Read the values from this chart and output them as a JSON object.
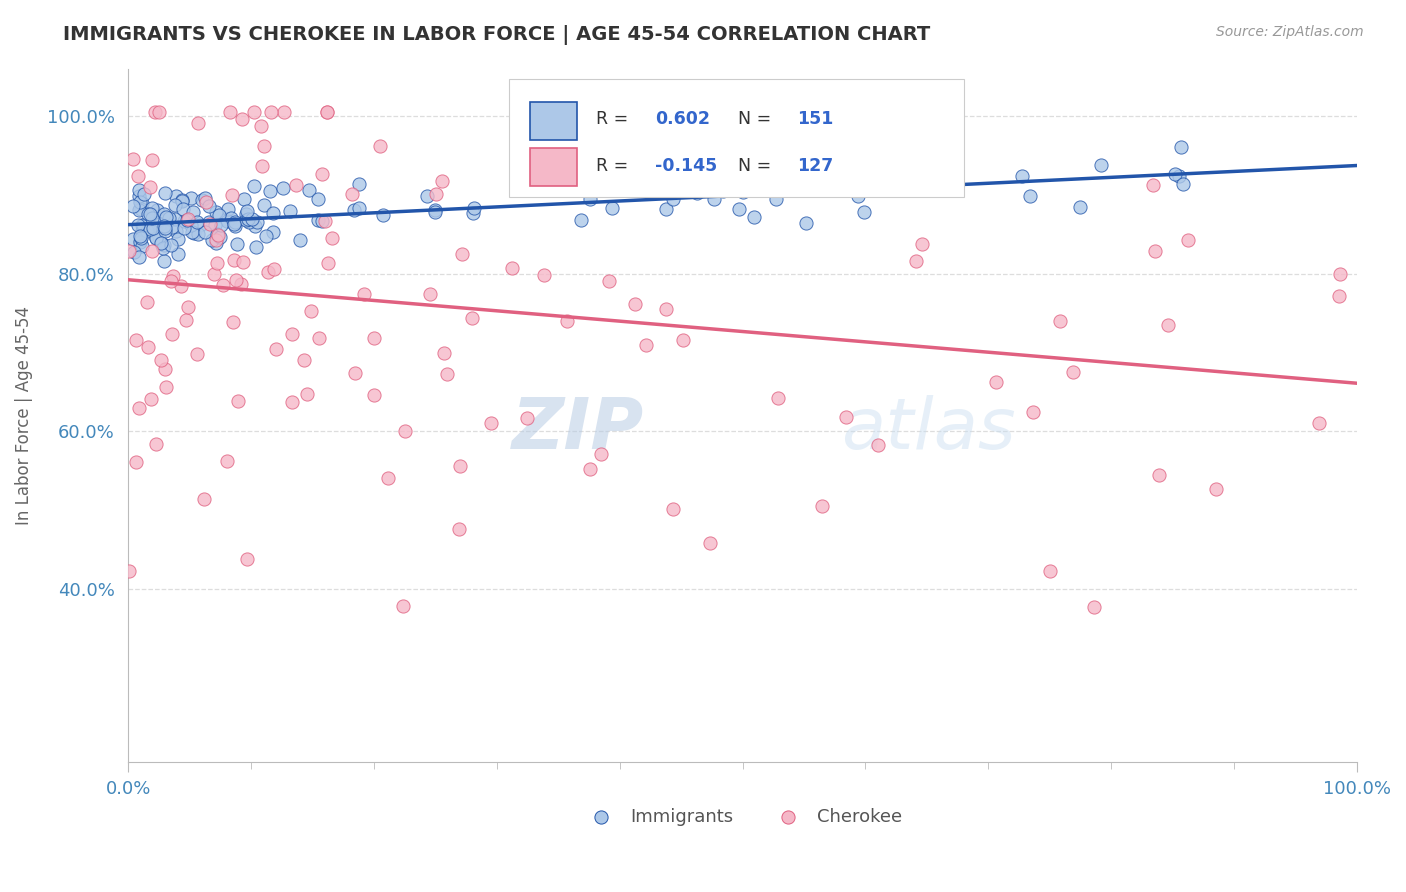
{
  "title": "IMMIGRANTS VS CHEROKEE IN LABOR FORCE | AGE 45-54 CORRELATION CHART",
  "source": "Source: ZipAtlas.com",
  "ylabel": "In Labor Force | Age 45-54",
  "xlim": [
    0.0,
    1.0
  ],
  "ylim": [
    0.18,
    1.06
  ],
  "x_tick_labels": [
    "0.0%",
    "100.0%"
  ],
  "y_tick_labels": [
    "40.0%",
    "60.0%",
    "80.0%",
    "100.0%"
  ],
  "y_tick_positions": [
    0.4,
    0.6,
    0.8,
    1.0
  ],
  "immigrants_R": 0.602,
  "immigrants_N": 151,
  "cherokee_R": -0.145,
  "cherokee_N": 127,
  "immigrants_color": "#adc8e8",
  "cherokee_color": "#f5b8c8",
  "immigrants_line_color": "#2255aa",
  "cherokee_line_color": "#e06080",
  "legend_R_color": "#3366cc",
  "watermark_color": "#c8d8ee",
  "background_color": "#ffffff",
  "grid_color": "#dddddd",
  "title_color": "#333333",
  "axis_label_color": "#4488bb",
  "source_color": "#999999"
}
